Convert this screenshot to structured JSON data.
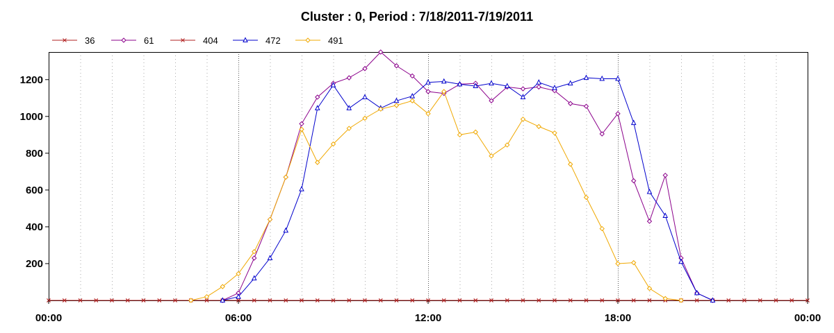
{
  "chart_data": {
    "type": "line",
    "title": "Cluster : 0, Period : 7/18/2011-7/19/2011",
    "xlabel": "",
    "ylabel": "",
    "xlim": [
      0,
      24
    ],
    "ylim": [
      0,
      1350
    ],
    "xticks": [
      0,
      6,
      12,
      18,
      24
    ],
    "xtick_labels": [
      "00:00",
      "06:00",
      "12:00",
      "18:00",
      "00:00"
    ],
    "yticks": [
      200,
      400,
      600,
      800,
      1000,
      1200
    ],
    "ytick_labels": [
      "200",
      "400",
      "600",
      "800",
      "1000",
      "1200"
    ],
    "grid": {
      "vertical_minor": true,
      "vertical_major": true,
      "horizontal": false
    },
    "legend_position": "top-left",
    "x": [
      0,
      0.5,
      1,
      1.5,
      2,
      2.5,
      3,
      3.5,
      4,
      4.5,
      5,
      5.5,
      6,
      6.5,
      7,
      7.5,
      8,
      8.5,
      9,
      9.5,
      10,
      10.5,
      11,
      11.5,
      12,
      12.5,
      13,
      13.5,
      14,
      14.5,
      15,
      15.5,
      16,
      16.5,
      17,
      17.5,
      18,
      18.5,
      19,
      19.5,
      20,
      20.5,
      21,
      21.5,
      22,
      22.5,
      23,
      23.5,
      24
    ],
    "series": [
      {
        "name": "36",
        "color": "#b22222",
        "marker": "x",
        "values": [
          0,
          0,
          0,
          0,
          0,
          0,
          0,
          0,
          0,
          0,
          0,
          0,
          0,
          0,
          0,
          0,
          0,
          0,
          0,
          0,
          0,
          0,
          0,
          0,
          0,
          0,
          0,
          0,
          0,
          0,
          0,
          0,
          0,
          0,
          0,
          0,
          0,
          0,
          0,
          0,
          0,
          0,
          0,
          0,
          0,
          0,
          0,
          0,
          0
        ]
      },
      {
        "name": "61",
        "color": "#8b008b",
        "marker": "diamond",
        "values": [
          null,
          null,
          null,
          null,
          null,
          null,
          null,
          null,
          null,
          null,
          null,
          0,
          40,
          230,
          440,
          670,
          960,
          1105,
          1180,
          1210,
          1260,
          1350,
          1275,
          1220,
          1135,
          1125,
          1175,
          1180,
          1085,
          1160,
          1150,
          1160,
          1140,
          1070,
          1055,
          905,
          1015,
          650,
          430,
          680,
          230,
          40,
          0,
          null,
          null,
          null,
          null,
          null,
          null
        ]
      },
      {
        "name": "404",
        "color": "#b22222",
        "marker": "x",
        "values": [
          0,
          0,
          0,
          0,
          0,
          0,
          0,
          0,
          0,
          0,
          0,
          0,
          0,
          0,
          0,
          0,
          0,
          0,
          0,
          0,
          0,
          0,
          0,
          0,
          0,
          0,
          0,
          0,
          0,
          0,
          0,
          0,
          0,
          0,
          0,
          0,
          0,
          0,
          0,
          0,
          0,
          0,
          0,
          0,
          0,
          0,
          0,
          0,
          0
        ]
      },
      {
        "name": "472",
        "color": "#0000cc",
        "marker": "triangle",
        "values": [
          null,
          null,
          null,
          null,
          null,
          null,
          null,
          null,
          null,
          null,
          null,
          0,
          20,
          120,
          230,
          380,
          605,
          1045,
          1170,
          1045,
          1105,
          1045,
          1085,
          1110,
          1185,
          1190,
          1175,
          1165,
          1180,
          1165,
          1105,
          1185,
          1155,
          1180,
          1210,
          1205,
          1205,
          965,
          590,
          460,
          210,
          40,
          0,
          null,
          null,
          null,
          null,
          null,
          null
        ]
      },
      {
        "name": "491",
        "color": "#f0a800",
        "marker": "diamond",
        "values": [
          null,
          null,
          null,
          null,
          null,
          null,
          null,
          null,
          null,
          0,
          20,
          75,
          145,
          265,
          440,
          670,
          930,
          750,
          850,
          935,
          990,
          1040,
          1060,
          1085,
          1015,
          1135,
          900,
          915,
          785,
          845,
          985,
          945,
          910,
          740,
          560,
          390,
          200,
          205,
          65,
          10,
          0,
          null,
          null,
          null,
          null,
          null,
          null,
          null,
          null
        ]
      }
    ]
  }
}
